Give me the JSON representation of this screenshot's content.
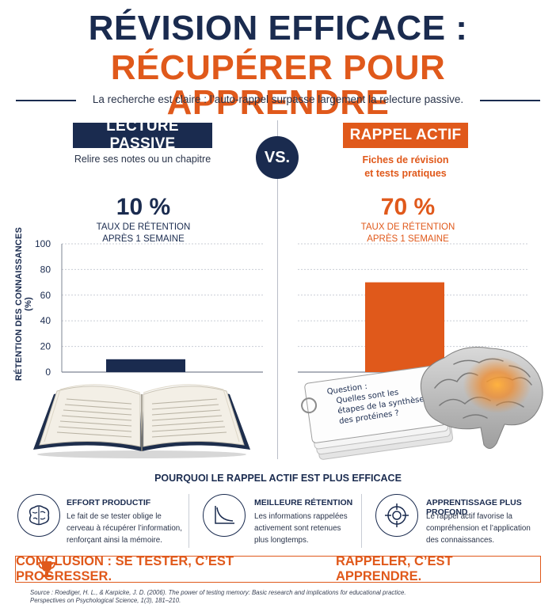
{
  "title": {
    "line1": "RÉVISION EFFICACE :",
    "line2": "RÉCUPÉRER POUR APPRENDRE",
    "subtitle": "La recherche est claire : l’auto-rappel surpasse largement la relecture passive."
  },
  "vs_label": "VS.",
  "left": {
    "label": "LECTURE PASSIVE",
    "description": "Relire ses notes ou un chapitre",
    "percent_text": "10 %",
    "retention_line1": "TAUX DE RÉTENTION",
    "retention_line2": "APRÈS 1 SEMAINE"
  },
  "right": {
    "label": "RAPPEL ACTIF",
    "description_line1": "Fiches de révision",
    "description_line2": "et tests pratiques",
    "percent_text": "70 %",
    "retention_line1": "TAUX DE RÉTENTION",
    "retention_line2": "APRÈS 1 SEMAINE"
  },
  "chart_data": {
    "type": "bar",
    "categories": [
      "LECTURE PASSIVE",
      "RAPPEL ACTIF"
    ],
    "values": [
      10,
      70
    ],
    "colors": [
      "#1a2b4f",
      "#e0591b"
    ],
    "ylabel": "RÉTENTION DES CONNAISSANCES (%)",
    "ylim": [
      0,
      100
    ],
    "yticks": [
      "100",
      "80",
      "60",
      "40",
      "20",
      "0"
    ],
    "grid": true
  },
  "flashcard": {
    "question_label": "Question :",
    "line1": "Quelles sont les",
    "line2": "étapes de la synthèse",
    "line3": "des protéines ?"
  },
  "why": {
    "title": "POURQUOI LE RAPPEL ACTIF EST PLUS EFFICACE",
    "features": [
      {
        "icon": "brain-icon",
        "title": "EFFORT PRODUCTIF",
        "lines": [
          "Le fait de se tester oblige le",
          "cerveau à récupérer l’information,",
          "renforçant ainsi la mémoire."
        ]
      },
      {
        "icon": "curve-chart-icon",
        "title": "MEILLEURE RÉTENTION",
        "lines": [
          "Les informations rappelées",
          "activement sont retenues",
          "plus longtemps."
        ]
      },
      {
        "icon": "target-icon",
        "title": "APPRENTISSAGE PLUS PROFOND",
        "lines": [
          "Le rappel actif favorise la",
          "compréhension et l’application",
          "des connaissances."
        ]
      }
    ]
  },
  "conclusion": {
    "icon": "trophy-icon",
    "part1": "CONCLUSION : SE TESTER, C’EST PROGRESSER.",
    "part2": "RAPPELER, C’EST APPRENDRE."
  },
  "source": {
    "line1": "Source : Roediger, H. L., & Karpicke, J. D. (2006). The power of testing memory: Basic research and implications for educational practice.",
    "line2": "Perspectives on Psychological Science, 1(3), 181–210."
  },
  "colors": {
    "navy": "#1a2b4f",
    "orange": "#e0591b"
  }
}
